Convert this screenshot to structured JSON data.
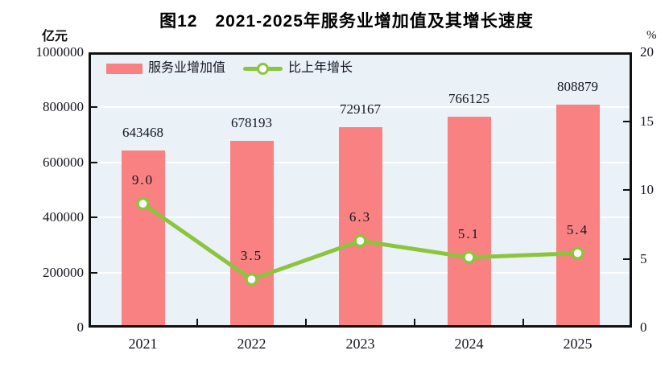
{
  "title": "图12　2021-2025年服务业增加值及其增长速度",
  "left_axis_unit": "亿元",
  "right_axis_unit": "%",
  "legend": {
    "bar_label": "服务业增加值",
    "line_label": "比上年增长"
  },
  "colors": {
    "bar": "#f98181",
    "line": "#8dc43e",
    "marker_fill": "#ffffff",
    "plot_background": "#eaf1f7",
    "gridline": "#ffffff",
    "axis": "#111111",
    "text": "#15151f"
  },
  "chart_data": {
    "type": "bar",
    "subtype": "bar+line combo, dual axis",
    "title": "图12　2021-2025年服务业增加值及其增长速度",
    "categories": [
      "2021",
      "2022",
      "2023",
      "2024",
      "2025"
    ],
    "series": [
      {
        "name": "服务业增加值",
        "type": "bar",
        "axis": "left",
        "values": [
          643468,
          678193,
          729167,
          766125,
          808879
        ],
        "value_labels": [
          "643468",
          "678193",
          "729167",
          "766125",
          "808879"
        ]
      },
      {
        "name": "比上年增长",
        "type": "line",
        "axis": "right",
        "values": [
          9.0,
          3.5,
          6.3,
          5.1,
          5.4
        ],
        "value_labels": [
          "9.0",
          "3.5",
          "6.3",
          "5.1",
          "5.4"
        ]
      }
    ],
    "left_axis": {
      "unit": "亿元",
      "min": 0,
      "max": 1000000,
      "ticks": [
        0,
        200000,
        400000,
        600000,
        800000,
        1000000
      ]
    },
    "right_axis": {
      "unit": "%",
      "min": 0,
      "max": 20,
      "ticks": [
        0,
        5,
        10,
        15,
        20
      ]
    },
    "grid": true,
    "legend_position": "top-left-inside",
    "plot_framed": true
  }
}
